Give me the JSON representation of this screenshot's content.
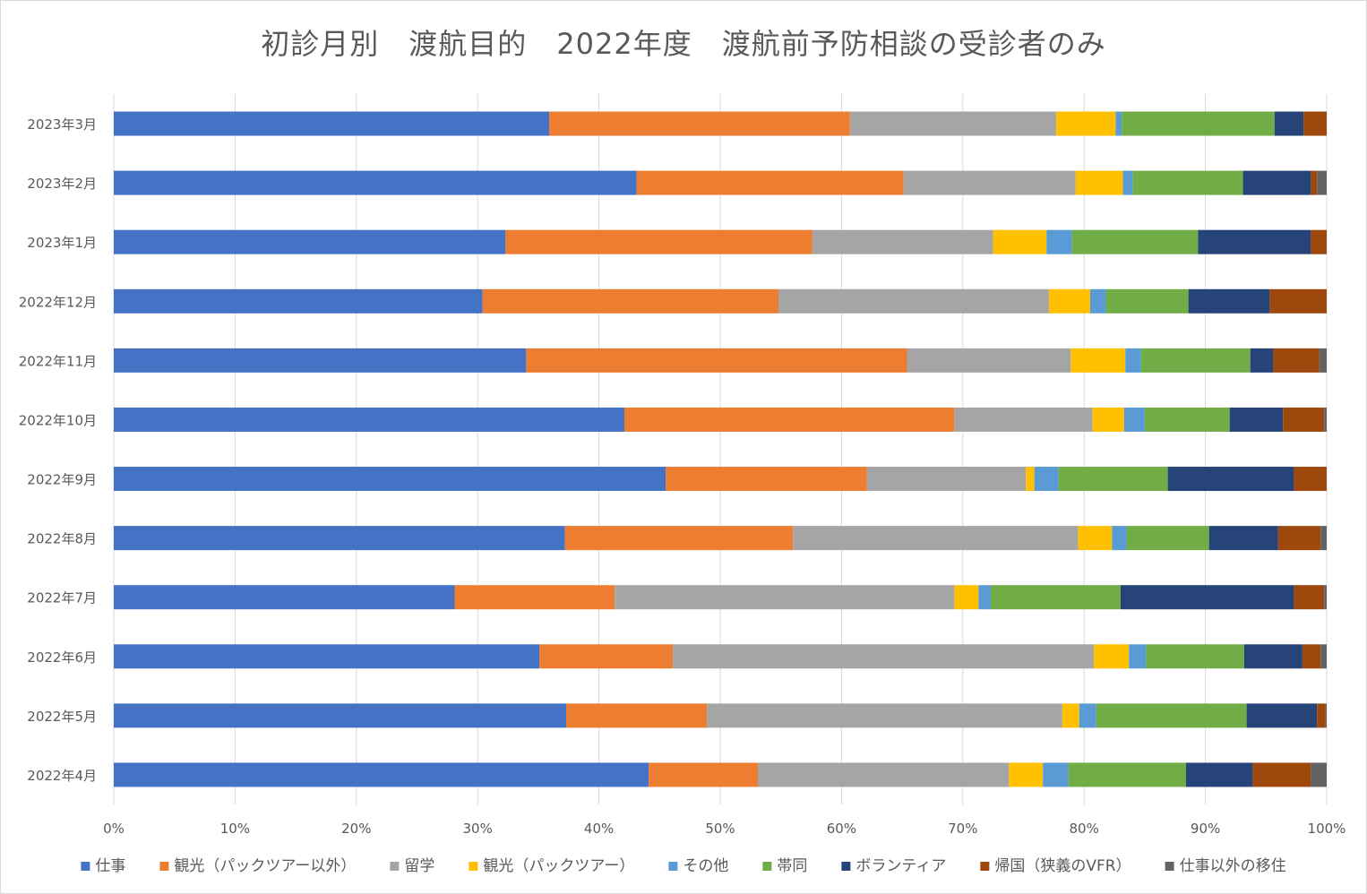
{
  "chart_data": {
    "type": "bar",
    "orientation": "horizontal",
    "stacked": "percent",
    "title": "初診月別　渡航目的　2022年度　渡航前予防相談の受診者のみ",
    "xlabel": "",
    "ylabel": "",
    "xlim": [
      0,
      100
    ],
    "x_ticks": [
      "0%",
      "10%",
      "20%",
      "30%",
      "40%",
      "50%",
      "60%",
      "70%",
      "80%",
      "90%",
      "100%"
    ],
    "grid": true,
    "legend_position": "bottom",
    "categories": [
      "2023年3月",
      "2023年2月",
      "2023年1月",
      "2022年12月",
      "2022年11月",
      "2022年10月",
      "2022年9月",
      "2022年8月",
      "2022年7月",
      "2022年6月",
      "2022年5月",
      "2022年4月"
    ],
    "series": [
      {
        "name": "仕事",
        "color": "#4472C4",
        "values": [
          35.9,
          43.1,
          32.3,
          30.4,
          34.0,
          42.1,
          45.5,
          37.2,
          28.1,
          35.1,
          37.3,
          44.1
        ]
      },
      {
        "name": "観光（パックツアー以外）",
        "color": "#ED7D31",
        "values": [
          24.8,
          22.0,
          25.3,
          24.4,
          31.4,
          27.2,
          16.6,
          18.8,
          13.2,
          11.0,
          11.6,
          9.0
        ]
      },
      {
        "name": "留学",
        "color": "#A5A5A5",
        "values": [
          17.0,
          14.2,
          14.9,
          22.3,
          13.5,
          11.4,
          13.1,
          23.5,
          28.0,
          34.7,
          29.3,
          20.7
        ]
      },
      {
        "name": "観光（パックツアー）",
        "color": "#FFC000",
        "values": [
          4.9,
          3.9,
          4.4,
          3.4,
          4.5,
          2.6,
          0.7,
          2.8,
          2.0,
          2.9,
          1.4,
          2.8
        ]
      },
      {
        "name": "その他",
        "color": "#5B9BD5",
        "values": [
          0.5,
          0.8,
          2.1,
          1.3,
          1.3,
          1.7,
          2.0,
          1.2,
          1.0,
          1.4,
          1.4,
          2.1
        ]
      },
      {
        "name": "帯同",
        "color": "#70AD47",
        "values": [
          12.6,
          9.1,
          10.4,
          6.8,
          9.0,
          7.0,
          9.0,
          6.8,
          10.7,
          8.1,
          12.4,
          9.7
        ]
      },
      {
        "name": "ボランティア",
        "color": "#264478",
        "values": [
          2.4,
          5.6,
          9.3,
          6.7,
          1.9,
          4.4,
          10.4,
          5.7,
          14.3,
          4.8,
          5.8,
          5.5
        ]
      },
      {
        "name": "帰国（狭義のVFR）",
        "color": "#9E480E",
        "values": [
          1.9,
          0.5,
          1.3,
          4.7,
          3.8,
          3.4,
          2.7,
          3.5,
          2.5,
          1.5,
          0.7,
          4.8
        ]
      },
      {
        "name": "仕事以外の移住",
        "color": "#636363",
        "values": [
          0.0,
          0.8,
          0.0,
          0.0,
          0.6,
          0.2,
          0.0,
          0.5,
          0.2,
          0.5,
          0.1,
          1.3
        ]
      }
    ]
  }
}
